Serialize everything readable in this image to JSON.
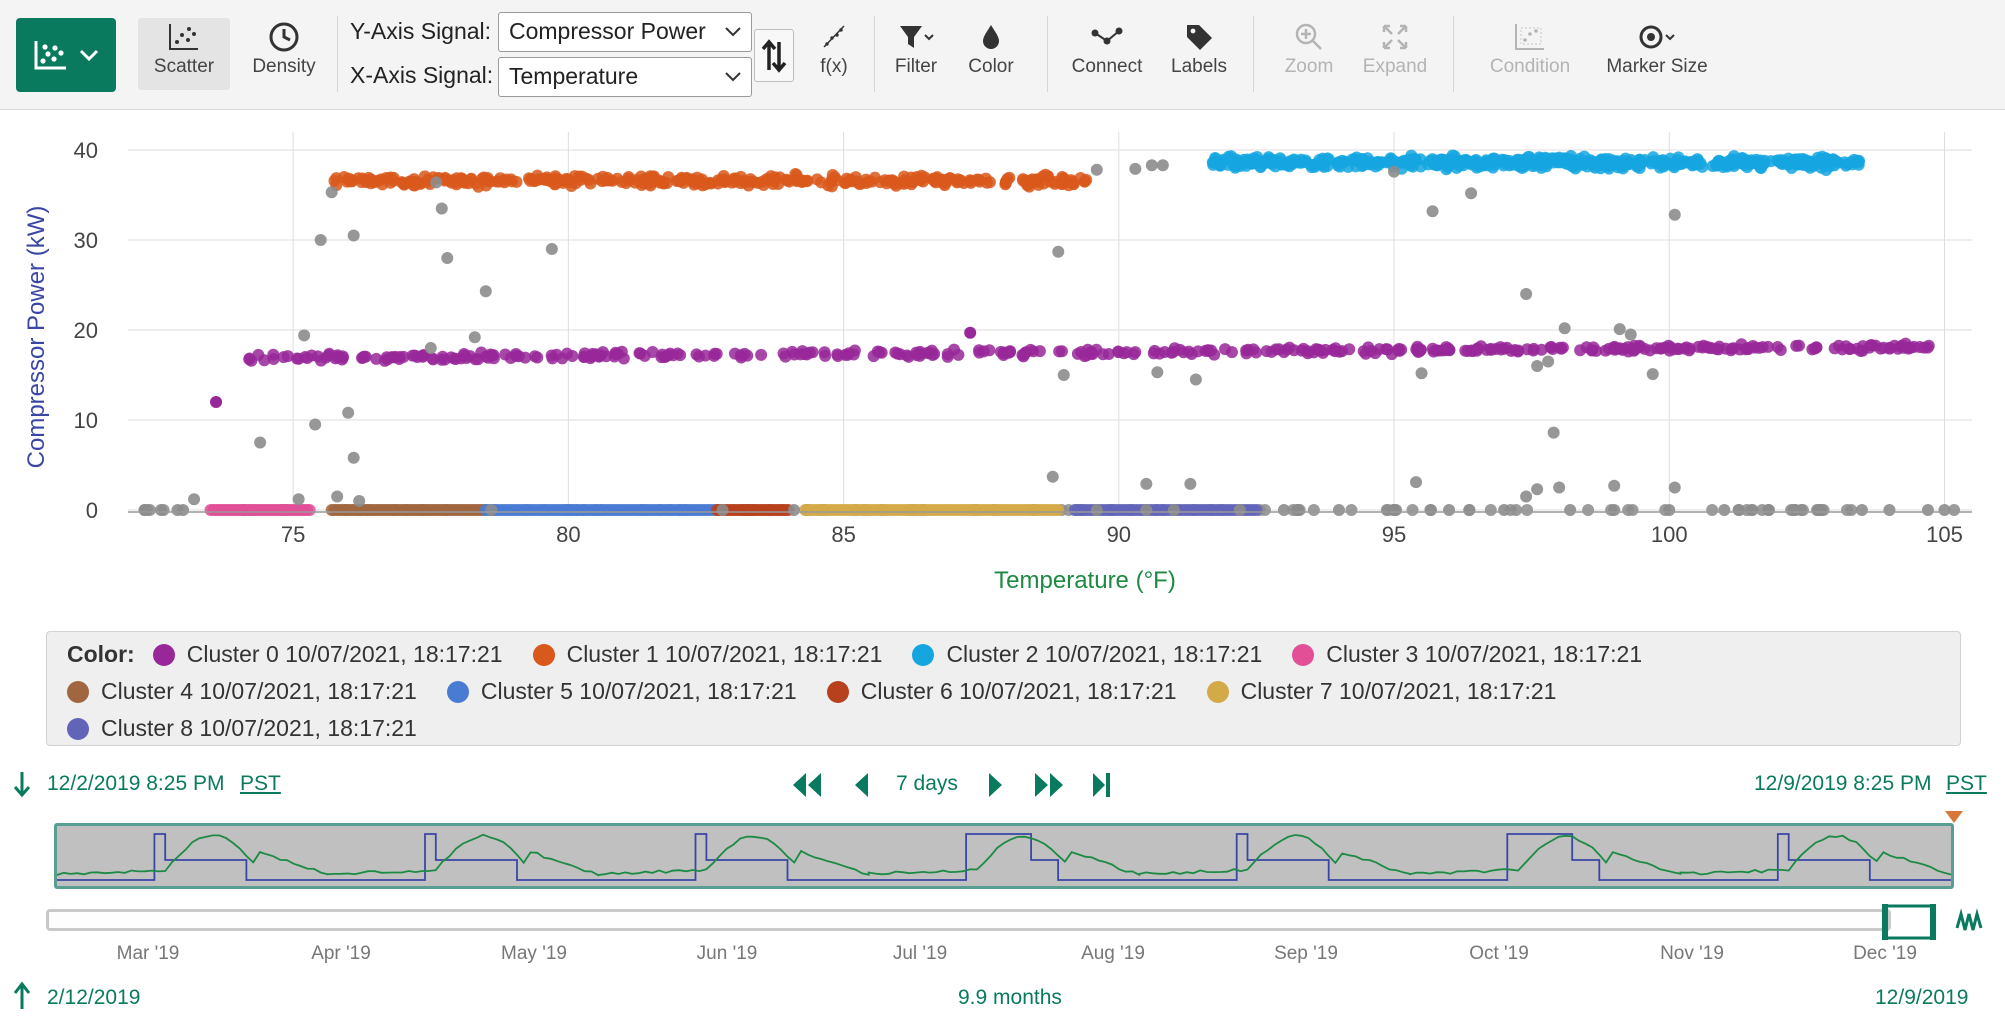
{
  "toolbar": {
    "scatter_label": "Scatter",
    "density_label": "Density",
    "y_axis_label": "Y-Axis Signal:",
    "y_axis_value": "Compressor Power",
    "x_axis_label": "X-Axis Signal:",
    "x_axis_value": "Temperature",
    "fx_label": "f(x)",
    "filter_label": "Filter",
    "color_label": "Color",
    "connect_label": "Connect",
    "labels_label": "Labels",
    "zoom_label": "Zoom",
    "expand_label": "Expand",
    "condition_label": "Condition",
    "marker_size_label": "Marker Size"
  },
  "colors": {
    "brand": "#0a7a5f",
    "unclustered": "#8c8c8c",
    "cluster0": "#982899",
    "cluster1": "#d9581b",
    "cluster2": "#15a6e0",
    "cluster3": "#e24f97",
    "cluster4": "#a0663f",
    "cluster5": "#4a7bd3",
    "cluster6": "#b8411d",
    "cluster7": "#d4aa48",
    "cluster8": "#6264b8",
    "mini_blue": "#3a46a6",
    "mini_green": "#1d8a44"
  },
  "chart_data": {
    "type": "scatter",
    "xlabel": "Temperature (°F)",
    "ylabel": "Compressor Power (kW)",
    "xlim": [
      72,
      105.5
    ],
    "ylim": [
      0,
      42
    ],
    "x_ticks": [
      75,
      80,
      85,
      90,
      95,
      100,
      105
    ],
    "y_ticks": [
      0,
      10,
      20,
      30,
      40
    ],
    "grid": true,
    "legend_title": "Color:",
    "series": [
      {
        "name": "Cluster 0 10/07/2021, 18:17:21",
        "color_key": "cluster0",
        "x_range": [
          74.2,
          104.9
        ],
        "y_center": 16.9,
        "y_spread": 0.5,
        "y_slope": 0.04,
        "count": 420
      },
      {
        "name": "Cluster 1 10/07/2021, 18:17:21",
        "color_key": "cluster1",
        "x_range": [
          75.7,
          89.5
        ],
        "y_center": 36.6,
        "y_spread": 0.8,
        "y_slope": 0.0,
        "count": 360
      },
      {
        "name": "Cluster 2 10/07/2021, 18:17:21",
        "color_key": "cluster2",
        "x_range": [
          91.7,
          103.5
        ],
        "y_center": 38.6,
        "y_spread": 0.9,
        "y_slope": 0.0,
        "count": 520
      },
      {
        "name": "Cluster 3 10/07/2021, 18:17:21",
        "color_key": "cluster3",
        "x_range": [
          73.5,
          75.3
        ],
        "y_center": 0,
        "y_spread": 0,
        "y_slope": 0,
        "count": 40
      },
      {
        "name": "Cluster 4 10/07/2021, 18:17:21",
        "color_key": "cluster4",
        "x_range": [
          75.7,
          78.5
        ],
        "y_center": 0,
        "y_spread": 0,
        "y_slope": 0,
        "count": 60
      },
      {
        "name": "Cluster 5 10/07/2021, 18:17:21",
        "color_key": "cluster5",
        "x_range": [
          78.5,
          82.7
        ],
        "y_center": 0,
        "y_spread": 0,
        "y_slope": 0,
        "count": 80
      },
      {
        "name": "Cluster 6 10/07/2021, 18:17:21",
        "color_key": "cluster6",
        "x_range": [
          82.7,
          84.0
        ],
        "y_center": 0,
        "y_spread": 0,
        "y_slope": 0,
        "count": 30
      },
      {
        "name": "Cluster 7 10/07/2021, 18:17:21",
        "color_key": "cluster7",
        "x_range": [
          84.3,
          88.9
        ],
        "y_center": 0,
        "y_spread": 0,
        "y_slope": 0,
        "count": 90
      },
      {
        "name": "Cluster 8 10/07/2021, 18:17:21",
        "color_key": "cluster8",
        "x_range": [
          89.2,
          92.5
        ],
        "y_center": 0,
        "y_spread": 0,
        "y_slope": 0,
        "count": 60
      }
    ],
    "unclustered_points": [
      [
        72.3,
        0
      ],
      [
        72.6,
        0
      ],
      [
        72.9,
        0
      ],
      [
        73.2,
        1.2
      ],
      [
        73.0,
        0
      ],
      [
        75.1,
        1.2
      ],
      [
        75.8,
        1.5
      ],
      [
        76.2,
        1.0
      ],
      [
        76.1,
        5.8
      ],
      [
        75.4,
        9.5
      ],
      [
        76.0,
        10.8
      ],
      [
        74.4,
        7.5
      ],
      [
        75.2,
        19.4
      ],
      [
        75.7,
        35.3
      ],
      [
        75.5,
        30.0
      ],
      [
        76.1,
        30.5
      ],
      [
        77.6,
        36.4
      ],
      [
        77.7,
        33.5
      ],
      [
        77.8,
        28.0
      ],
      [
        78.5,
        24.3
      ],
      [
        78.3,
        19.2
      ],
      [
        77.5,
        18.0
      ],
      [
        79.7,
        29.0
      ],
      [
        88.9,
        28.7
      ],
      [
        89.0,
        15.0
      ],
      [
        90.7,
        15.3
      ],
      [
        91.4,
        14.5
      ],
      [
        89.6,
        37.8
      ],
      [
        90.3,
        37.9
      ],
      [
        90.6,
        38.3
      ],
      [
        90.8,
        38.3
      ],
      [
        88.8,
        3.7
      ],
      [
        90.5,
        2.9
      ],
      [
        91.3,
        2.9
      ],
      [
        95.0,
        37.6
      ],
      [
        95.7,
        33.2
      ],
      [
        96.4,
        35.2
      ],
      [
        97.4,
        24.0
      ],
      [
        98.1,
        20.2
      ],
      [
        99.1,
        20.1
      ],
      [
        99.3,
        19.5
      ],
      [
        100.1,
        32.8
      ],
      [
        95.5,
        15.2
      ],
      [
        99.7,
        15.1
      ],
      [
        97.6,
        16.0
      ],
      [
        97.8,
        16.5
      ],
      [
        97.9,
        8.6
      ],
      [
        97.4,
        1.5
      ],
      [
        97.6,
        2.3
      ],
      [
        98.0,
        2.5
      ],
      [
        99.0,
        2.7
      ],
      [
        100.1,
        2.5
      ],
      [
        95.4,
        3.1
      ],
      [
        92.2,
        0
      ],
      [
        93.0,
        0
      ],
      [
        94.0,
        0
      ],
      [
        95.0,
        0
      ],
      [
        96.0,
        0
      ],
      [
        97.0,
        0
      ],
      [
        98.2,
        0
      ],
      [
        99.0,
        0
      ],
      [
        100.0,
        0
      ],
      [
        101.0,
        0
      ],
      [
        101.8,
        0
      ],
      [
        102.7,
        0
      ],
      [
        103.5,
        0
      ],
      [
        104.0,
        0
      ],
      [
        104.7,
        0
      ],
      [
        105.0,
        0
      ],
      [
        90.5,
        0
      ],
      [
        91.0,
        0
      ],
      [
        89.6,
        0
      ],
      [
        84.1,
        0
      ],
      [
        78.6,
        0
      ],
      [
        82.8,
        0
      ]
    ],
    "unclustered_count_on_zero_line": 120
  },
  "timebar": {
    "start": "12/2/2019 8:25 PM",
    "end": "12/9/2019 8:25 PM",
    "tz": "PST",
    "duration": "7 days",
    "range_start": "2/12/2019",
    "range_end": "12/9/2019",
    "range_duration": "9.9 months",
    "months": [
      "Mar '19",
      "Apr '19",
      "May '19",
      "Jun '19",
      "Jul '19",
      "Aug '19",
      "Sep '19",
      "Oct '19",
      "Nov '19",
      "Dec '19"
    ]
  }
}
